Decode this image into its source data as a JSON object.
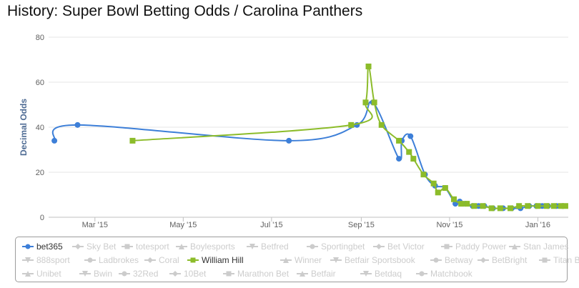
{
  "title": "History: Super Bowl Betting Odds / Carolina Panthers",
  "colors": {
    "bet365": "#3d7fd8",
    "william_hill": "#8cbc2a",
    "inactive": "#cccccc",
    "grid": "#e6e6e6"
  },
  "chart_data": {
    "type": "line",
    "ylabel": "Decimal Odds",
    "xlabel": "",
    "ylim": [
      0,
      80
    ],
    "yticks": [
      "0",
      "20",
      "40",
      "60",
      "80"
    ],
    "xlim": [
      "2015-01-28",
      "2016-01-22"
    ],
    "xticks": [
      {
        "date": "2015-03-01",
        "label": "Mar '15"
      },
      {
        "date": "2015-05-01",
        "label": "May '15"
      },
      {
        "date": "2015-07-01",
        "label": "Jul '15"
      },
      {
        "date": "2015-09-01",
        "label": "Sep '15"
      },
      {
        "date": "2015-11-01",
        "label": "Nov '15"
      },
      {
        "date": "2016-01-01",
        "label": "Jan '16"
      }
    ],
    "series": [
      {
        "name": "bet365",
        "color": "#3d7fd8",
        "marker": "circle",
        "points": [
          [
            "2015-02-01",
            34
          ],
          [
            "2015-02-17",
            41
          ],
          [
            "2015-07-13",
            34
          ],
          [
            "2015-08-29",
            41
          ],
          [
            "2015-09-09",
            51
          ],
          [
            "2015-09-27",
            26
          ],
          [
            "2015-09-29",
            34
          ],
          [
            "2015-10-05",
            36
          ],
          [
            "2015-10-15",
            19
          ],
          [
            "2015-10-22",
            14
          ],
          [
            "2015-10-29",
            13
          ],
          [
            "2015-11-05",
            6
          ],
          [
            "2015-11-08",
            7
          ],
          [
            "2015-11-12",
            6
          ],
          [
            "2015-11-17",
            5
          ],
          [
            "2015-11-21",
            5
          ],
          [
            "2015-11-25",
            5
          ],
          [
            "2015-12-01",
            4
          ],
          [
            "2015-12-08",
            4
          ],
          [
            "2015-12-14",
            4
          ],
          [
            "2015-12-20",
            4
          ],
          [
            "2015-12-26",
            5
          ],
          [
            "2015-12-31",
            5
          ],
          [
            "2016-01-04",
            5
          ],
          [
            "2016-01-08",
            5
          ],
          [
            "2016-01-14",
            5
          ],
          [
            "2016-01-18",
            5
          ]
        ]
      },
      {
        "name": "William Hill",
        "color": "#8cbc2a",
        "marker": "square",
        "points": [
          [
            "2015-03-27",
            34
          ],
          [
            "2015-08-25",
            41
          ],
          [
            "2015-09-04",
            51
          ],
          [
            "2015-09-06",
            67
          ],
          [
            "2015-09-10",
            51
          ],
          [
            "2015-09-15",
            41
          ],
          [
            "2015-09-27",
            34
          ],
          [
            "2015-10-04",
            29
          ],
          [
            "2015-10-07",
            26
          ],
          [
            "2015-10-14",
            19
          ],
          [
            "2015-10-21",
            15
          ],
          [
            "2015-10-24",
            11
          ],
          [
            "2015-10-29",
            13
          ],
          [
            "2015-11-04",
            8
          ],
          [
            "2015-11-09",
            6
          ],
          [
            "2015-11-13",
            6
          ],
          [
            "2015-11-18",
            5
          ],
          [
            "2015-11-24",
            5
          ],
          [
            "2015-11-30",
            4
          ],
          [
            "2015-12-06",
            4
          ],
          [
            "2015-12-13",
            4
          ],
          [
            "2015-12-19",
            5
          ],
          [
            "2015-12-25",
            5
          ],
          [
            "2016-01-01",
            5
          ],
          [
            "2016-01-07",
            5
          ],
          [
            "2016-01-12",
            5
          ],
          [
            "2016-01-17",
            5
          ],
          [
            "2016-01-20",
            5
          ]
        ]
      }
    ]
  },
  "legend": [
    {
      "label": "bet365",
      "marker": "circle",
      "active": true
    },
    {
      "label": "Sky Bet",
      "marker": "diamond",
      "active": false
    },
    {
      "label": "totesport",
      "marker": "square",
      "active": false
    },
    {
      "label": "Boylesports",
      "marker": "triangle",
      "active": false
    },
    {
      "label": "Betfred",
      "marker": "triangle-down",
      "active": false
    },
    {
      "label": "Sportingbet",
      "marker": "circle",
      "active": false
    },
    {
      "label": "Bet Victor",
      "marker": "diamond",
      "active": false
    },
    {
      "label": "Paddy Power",
      "marker": "square",
      "active": false
    },
    {
      "label": "Stan James",
      "marker": "triangle",
      "active": false
    },
    {
      "label": "888sport",
      "marker": "triangle-down",
      "active": false
    },
    {
      "label": "Ladbrokes",
      "marker": "circle",
      "active": false
    },
    {
      "label": "Coral",
      "marker": "diamond",
      "active": false
    },
    {
      "label": "William Hill",
      "marker": "square",
      "active": true
    },
    {
      "label": "Winner",
      "marker": "triangle",
      "active": false
    },
    {
      "label": "Betfair Sportsbook",
      "marker": "triangle-down",
      "active": false
    },
    {
      "label": "Betway",
      "marker": "circle",
      "active": false
    },
    {
      "label": "BetBright",
      "marker": "diamond",
      "active": false
    },
    {
      "label": "Titan Bet",
      "marker": "square",
      "active": false
    },
    {
      "label": "Unibet",
      "marker": "triangle",
      "active": false
    },
    {
      "label": "Bwin",
      "marker": "triangle-down",
      "active": false
    },
    {
      "label": "32Red",
      "marker": "circle",
      "active": false
    },
    {
      "label": "10Bet",
      "marker": "diamond",
      "active": false
    },
    {
      "label": "Marathon Bet",
      "marker": "square",
      "active": false
    },
    {
      "label": "Betfair",
      "marker": "triangle",
      "active": false
    },
    {
      "label": "Betdaq",
      "marker": "triangle-down",
      "active": false
    },
    {
      "label": "Matchbook",
      "marker": "circle",
      "active": false
    }
  ]
}
